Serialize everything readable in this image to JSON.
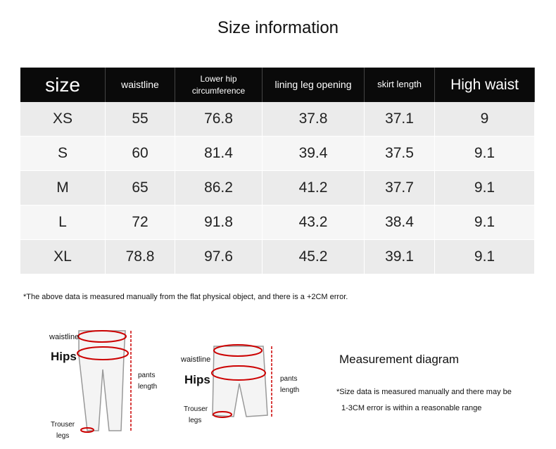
{
  "title": "Size information",
  "table": {
    "header": [
      "size",
      "waistline",
      "Lower hip circumference",
      "lining leg opening",
      "skirt length",
      "High waist"
    ],
    "rows": [
      [
        "XS",
        "55",
        "76.8",
        "37.8",
        "37.1",
        "9"
      ],
      [
        "S",
        "60",
        "81.4",
        "39.4",
        "37.5",
        "9.1"
      ],
      [
        "M",
        "65",
        "86.2",
        "41.2",
        "37.7",
        "9.1"
      ],
      [
        "L",
        "72",
        "91.8",
        "43.2",
        "38.4",
        "9.1"
      ],
      [
        "XL",
        "78.8",
        "97.6",
        "45.2",
        "39.1",
        "9.1"
      ]
    ]
  },
  "note": "*The above data is measured manually from the flat physical object, and there is a +2CM error.",
  "diagram_long": {
    "waistline": "waistline",
    "hips": "Hips",
    "length": [
      "pants",
      "length"
    ],
    "legs": [
      "Trouser",
      "legs"
    ]
  },
  "diagram_short": {
    "waistline": "waistline",
    "hips": "Hips",
    "length": [
      "pants",
      "length"
    ],
    "legs": [
      "Trouser",
      "legs"
    ]
  },
  "measurement": {
    "title": "Measurement diagram",
    "lines": [
      "*Size data is measured manually and there may be",
      "1-3CM error is within a reasonable range"
    ]
  }
}
